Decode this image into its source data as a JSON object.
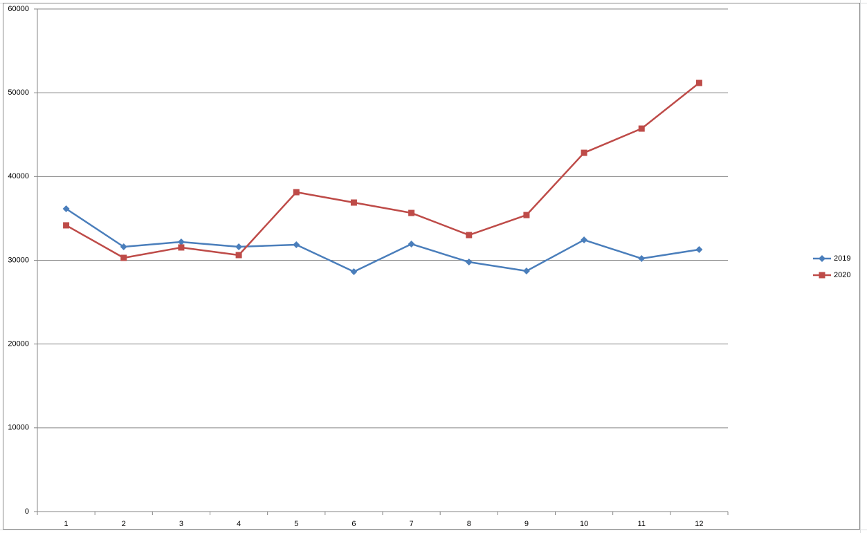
{
  "chart_data": {
    "type": "line",
    "categories": [
      "1",
      "2",
      "3",
      "4",
      "5",
      "6",
      "7",
      "8",
      "9",
      "10",
      "11",
      "12"
    ],
    "series": [
      {
        "name": "2019",
        "color": "#4a7ebb",
        "marker": "diamond",
        "values": [
          36150,
          31610,
          32190,
          31610,
          31860,
          28640,
          31940,
          29790,
          28720,
          32430,
          30210,
          31280
        ]
      },
      {
        "name": "2020",
        "color": "#be4b48",
        "marker": "square",
        "values": [
          34170,
          30290,
          31530,
          30620,
          38130,
          36890,
          35650,
          33010,
          35400,
          42830,
          45720,
          51170
        ]
      }
    ],
    "ylim": [
      0,
      60000
    ],
    "yticks": [
      0,
      10000,
      20000,
      30000,
      40000,
      50000,
      60000
    ],
    "grid": true,
    "legend": "right"
  }
}
